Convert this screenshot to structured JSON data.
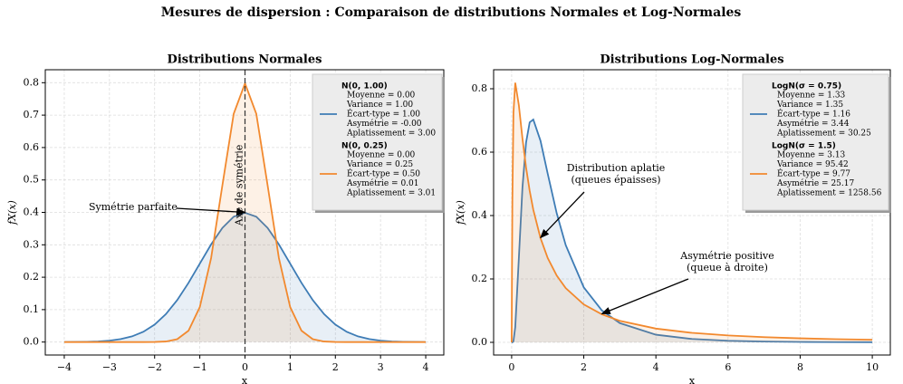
{
  "title": "Mesures de dispersion : Comparaison de distributions Normales et Log-Normales",
  "chart_data": [
    {
      "type": "line",
      "title": "Distributions Normales",
      "xlabel": "x",
      "ylabel": "fX(x)",
      "xlim": [
        -4.42,
        4.4
      ],
      "ylim": [
        -0.04,
        0.84
      ],
      "xticks": [
        {
          "value": -4,
          "label": "−4"
        },
        {
          "value": -3,
          "label": "−3"
        },
        {
          "value": -2,
          "label": "−2"
        },
        {
          "value": -1,
          "label": "−1"
        },
        0,
        1,
        2,
        3,
        4
      ],
      "yticks": [
        {
          "value": 0,
          "label": "0.0"
        },
        {
          "value": 0.1,
          "label": "0.1"
        },
        {
          "value": 0.2,
          "label": "0.2"
        },
        {
          "value": 0.3,
          "label": "0.3"
        },
        {
          "value": 0.4,
          "label": "0.4"
        },
        {
          "value": 0.5,
          "label": "0.5"
        },
        {
          "value": 0.6,
          "label": "0.6"
        },
        {
          "value": 0.7,
          "label": "0.7"
        },
        {
          "value": 0.8,
          "label": "0.8"
        }
      ],
      "grid": true,
      "legend": "upper right",
      "x": [
        -4,
        -3.75,
        -3.5,
        -3.25,
        -3,
        -2.75,
        -2.5,
        -2.25,
        -2,
        -1.75,
        -1.5,
        -1.25,
        -1,
        -0.75,
        -0.5,
        -0.25,
        0,
        0.25,
        0.5,
        0.75,
        1,
        1.25,
        1.5,
        1.75,
        2,
        2.25,
        2.5,
        2.75,
        3,
        3.25,
        3.5,
        3.75,
        4
      ],
      "series": [
        {
          "name": "N(0, 1.00)",
          "color": "#3e7cb5",
          "stats": [
            "Moyenne = 0.00",
            "Variance = 1.00",
            "Écart-type = 1.00",
            "Asymétrie = -0.00",
            "Aplatissement = 3.00"
          ],
          "values": [
            0.0001,
            0.0004,
            0.0009,
            0.002,
            0.0044,
            0.0091,
            0.0175,
            0.0317,
            0.054,
            0.0863,
            0.1295,
            0.1826,
            0.242,
            0.3011,
            0.3521,
            0.3867,
            0.3989,
            0.3867,
            0.3521,
            0.3011,
            0.242,
            0.1826,
            0.1295,
            0.0863,
            0.054,
            0.0317,
            0.0175,
            0.0091,
            0.0044,
            0.002,
            0.0009,
            0.0004,
            0.0001
          ]
        },
        {
          "name": "N(0, 0.25)",
          "color": "#f2892e",
          "stats": [
            "Moyenne = 0.00",
            "Variance = 0.25",
            "Écart-type = 0.50",
            "Asymétrie = 0.01",
            "Aplatissement = 3.01"
          ],
          "values": [
            0,
            0,
            0,
            0,
            0,
            0,
            0,
            0,
            0.0003,
            0.0017,
            0.0089,
            0.035,
            0.108,
            0.2591,
            0.4839,
            0.7041,
            0.7979,
            0.7041,
            0.4839,
            0.2591,
            0.108,
            0.035,
            0.0089,
            0.0017,
            0.0003,
            0,
            0,
            0,
            0,
            0,
            0,
            0,
            0
          ]
        }
      ],
      "vline": {
        "x": 0,
        "label": "Axe de symétrie"
      },
      "annotations": [
        {
          "lines": [
            "Symétrie parfaite"
          ],
          "color": "#000000"
        }
      ]
    },
    {
      "type": "line",
      "title": "Distributions Log-Normales",
      "xlabel": "x",
      "ylabel": "fX(x)",
      "xlim": [
        -0.5,
        10.5
      ],
      "ylim": [
        -0.04,
        0.86
      ],
      "xticks": [
        0,
        2,
        4,
        6,
        8,
        10
      ],
      "yticks": [
        {
          "value": 0,
          "label": "0.0"
        },
        {
          "value": 0.2,
          "label": "0.2"
        },
        {
          "value": 0.4,
          "label": "0.4"
        },
        {
          "value": 0.6,
          "label": "0.6"
        },
        {
          "value": 0.8,
          "label": "0.8"
        }
      ],
      "grid": true,
      "legend": "upper right",
      "x": [
        0,
        0.01,
        0.02,
        0.05,
        0.1,
        0.2,
        0.3,
        0.4,
        0.5,
        0.6,
        0.8,
        1,
        1.25,
        1.5,
        2,
        2.5,
        3,
        4,
        5,
        6,
        7,
        8,
        9,
        10
      ],
      "series": [
        {
          "name": "LogN(σ = 0.75)",
          "color": "#3e7cb5",
          "stats": [
            "Moyenne = 1.33",
            "Variance = 1.35",
            "Écart-type = 1.16",
            "Asymétrie = 3.44",
            "Aplatissement = 30.25"
          ],
          "values": [
            0,
            0,
            0,
            0.0036,
            0.0478,
            0.266,
            0.4888,
            0.6305,
            0.694,
            0.703,
            0.636,
            0.5319,
            0.407,
            0.3064,
            0.1735,
            0.1009,
            0.0606,
            0.0241,
            0.0106,
            0.0051,
            0.0026,
            0.0014,
            0.0008,
            0.0005
          ]
        },
        {
          "name": "LogN(σ = 1.5)",
          "color": "#f2892e",
          "stats": [
            "Moyenne = 3.13",
            "Variance = 95.42",
            "Écart-type = 9.77",
            "Asymétrie = 25.17",
            "Aplatissement = 1258.56"
          ],
          "values": [
            0,
            0.239,
            0.444,
            0.724,
            0.819,
            0.748,
            0.6425,
            0.5518,
            0.4781,
            0.4184,
            0.3288,
            0.266,
            0.2105,
            0.171,
            0.1195,
            0.0883,
            0.0678,
            0.0434,
            0.0299,
            0.0217,
            0.0164,
            0.0127,
            0.0101,
            0.0082
          ]
        }
      ],
      "annotations": [
        {
          "lines": [
            "Distribution aplatie",
            "(queues épaisses)"
          ],
          "color": "#f2892e"
        },
        {
          "lines": [
            "Asymétrie positive",
            "(queue à droite)"
          ],
          "color": "#f2892e"
        }
      ]
    }
  ]
}
